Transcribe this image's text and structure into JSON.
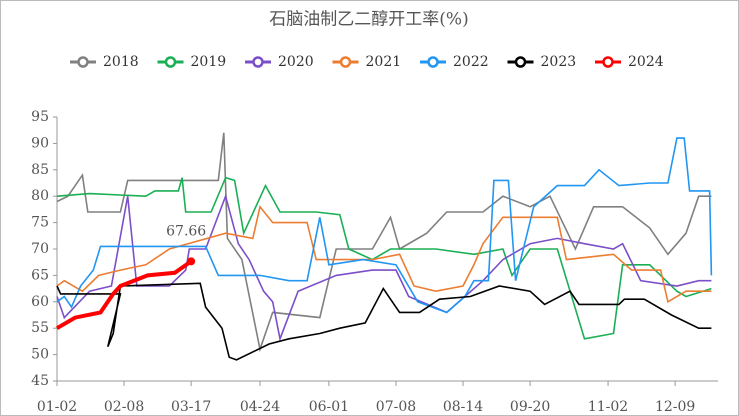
{
  "chart_data": {
    "type": "line",
    "title": "石脑油制乙二醇开工率(%)",
    "xlim": [
      "01-02",
      "12-31"
    ],
    "xticks": [
      "01-02",
      "02-08",
      "03-17",
      "04-24",
      "06-01",
      "07-08",
      "08-14",
      "09-20",
      "11-02",
      "12-09"
    ],
    "ylim": [
      45,
      95
    ],
    "yticks": [
      45,
      50,
      55,
      60,
      65,
      70,
      75,
      80,
      85,
      90,
      95
    ],
    "legend": "top",
    "series": [
      {
        "name": "2018",
        "color": "#808080",
        "x": [
          "01-02",
          "01-08",
          "01-16",
          "01-19",
          "02-06",
          "02-10",
          "04-01",
          "04-04",
          "04-06",
          "04-14",
          "04-24",
          "05-01",
          "05-27",
          "06-05",
          "06-25",
          "07-05",
          "07-10",
          "07-25",
          "08-05",
          "08-25",
          "09-05",
          "09-20",
          "10-01",
          "10-15",
          "10-25",
          "11-10",
          "11-25",
          "12-05",
          "12-15",
          "12-22",
          "12-29"
        ],
        "values": [
          79,
          80,
          84,
          77,
          77,
          83,
          83,
          92,
          72,
          68,
          51,
          58,
          57,
          70,
          70,
          76,
          70,
          73,
          77,
          77,
          80,
          78,
          80,
          70,
          78,
          78,
          74,
          69,
          73,
          80,
          80
        ]
      },
      {
        "name": "2019",
        "color": "#1aaf54",
        "x": [
          "01-02",
          "01-20",
          "02-20",
          "02-25",
          "03-10",
          "03-12",
          "03-14",
          "03-28",
          "04-05",
          "04-10",
          "04-15",
          "04-27",
          "05-05",
          "05-25",
          "06-07",
          "06-12",
          "06-25",
          "07-05",
          "07-30",
          "08-20",
          "09-05",
          "09-10",
          "09-20",
          "10-05",
          "10-20",
          "11-05",
          "11-10",
          "11-25",
          "12-10",
          "12-15",
          "12-29"
        ],
        "values": [
          80,
          80.5,
          80,
          81,
          81,
          83.5,
          77,
          77,
          83.5,
          83,
          73,
          82,
          77,
          77,
          76.5,
          70,
          68,
          70,
          70,
          69,
          70,
          65,
          70,
          70,
          53,
          54,
          67,
          67,
          62,
          61,
          62.5
        ]
      },
      {
        "name": "2020",
        "color": "#7b4fc9",
        "x": [
          "01-02",
          "01-06",
          "01-20",
          "02-01",
          "02-10",
          "02-15",
          "03-05",
          "03-14",
          "03-16",
          "03-25",
          "04-05",
          "04-12",
          "04-18",
          "04-26",
          "05-01",
          "05-05",
          "05-15",
          "06-05",
          "06-25",
          "07-08",
          "07-15",
          "08-05",
          "08-25",
          "09-05",
          "09-20",
          "10-05",
          "10-20",
          "11-05",
          "11-10",
          "11-20",
          "12-10",
          "12-22",
          "12-29"
        ],
        "values": [
          61,
          57,
          62,
          63,
          80,
          63,
          63,
          66,
          70,
          70,
          80,
          71,
          68,
          62,
          60,
          53,
          62,
          65,
          66,
          66,
          61,
          58,
          64,
          68,
          71,
          72,
          71,
          70,
          71,
          64,
          63,
          64,
          64
        ]
      },
      {
        "name": "2021",
        "color": "#ed7d31",
        "x": [
          "01-02",
          "01-06",
          "01-16",
          "01-25",
          "02-06",
          "02-20",
          "03-05",
          "04-05",
          "04-20",
          "04-24",
          "05-01",
          "05-20",
          "05-25",
          "06-25",
          "07-10",
          "07-18",
          "07-30",
          "08-14",
          "08-20",
          "08-25",
          "09-05",
          "10-05",
          "10-10",
          "11-05",
          "11-15",
          "12-01",
          "12-05",
          "12-15",
          "12-29"
        ],
        "values": [
          63,
          64,
          62,
          65,
          66,
          67,
          70,
          73,
          72,
          78,
          75,
          75,
          68,
          68,
          69,
          63,
          62,
          63,
          67,
          71,
          76,
          76,
          68,
          69,
          66,
          66,
          60,
          62,
          62
        ]
      },
      {
        "name": "2022",
        "color": "#2196f3",
        "x": [
          "01-02",
          "01-06",
          "01-10",
          "01-15",
          "01-22",
          "01-26",
          "03-25",
          "04-01",
          "04-24",
          "05-10",
          "05-20",
          "05-27",
          "06-01",
          "06-20",
          "07-08",
          "07-20",
          "08-05",
          "08-15",
          "08-20",
          "08-28",
          "08-31",
          "09-08",
          "09-12",
          "09-22",
          "10-05",
          "10-20",
          "10-28",
          "11-08",
          "11-25",
          "12-05",
          "12-10",
          "12-14",
          "12-17",
          "12-28",
          "12-29"
        ],
        "values": [
          60,
          61,
          59,
          63,
          66,
          70.5,
          70.5,
          65,
          65,
          64,
          64,
          76,
          67,
          68,
          67,
          60,
          58,
          61,
          64,
          64,
          83,
          83,
          64,
          78,
          82,
          82,
          85,
          82,
          82.5,
          82.5,
          91,
          91,
          81,
          81,
          65
        ]
      },
      {
        "name": "2023",
        "color": "#000000",
        "x": [
          "01-02",
          "01-04",
          "02-06",
          "01-30",
          "02-02",
          "02-06",
          "03-22",
          "03-25",
          "04-03",
          "04-07",
          "04-11",
          "04-29",
          "05-10",
          "05-27",
          "06-07",
          "06-21",
          "07-01",
          "07-06",
          "07-10",
          "07-21",
          "08-01",
          "08-18",
          "09-03",
          "09-20",
          "09-28",
          "10-12",
          "10-17",
          "11-08",
          "11-11",
          "11-22",
          "12-07",
          "12-22",
          "12-29"
        ],
        "values": [
          63,
          61.5,
          61.5,
          51.5,
          54,
          63,
          63.5,
          59,
          55,
          49.5,
          49,
          52,
          53,
          54,
          55,
          56,
          62.5,
          60,
          58,
          58,
          60.5,
          61,
          63,
          62,
          59.5,
          62,
          59.5,
          59.5,
          60.5,
          60.5,
          57.5,
          55,
          55
        ]
      },
      {
        "name": "2024",
        "color": "#ff0000",
        "x": [
          "01-02",
          "01-12",
          "01-26",
          "01-30",
          "02-02",
          "02-06",
          "02-21",
          "03-08",
          "03-17"
        ],
        "values": [
          55,
          57,
          58,
          60,
          61.5,
          63,
          65,
          65.5,
          67.66
        ]
      }
    ]
  }
}
